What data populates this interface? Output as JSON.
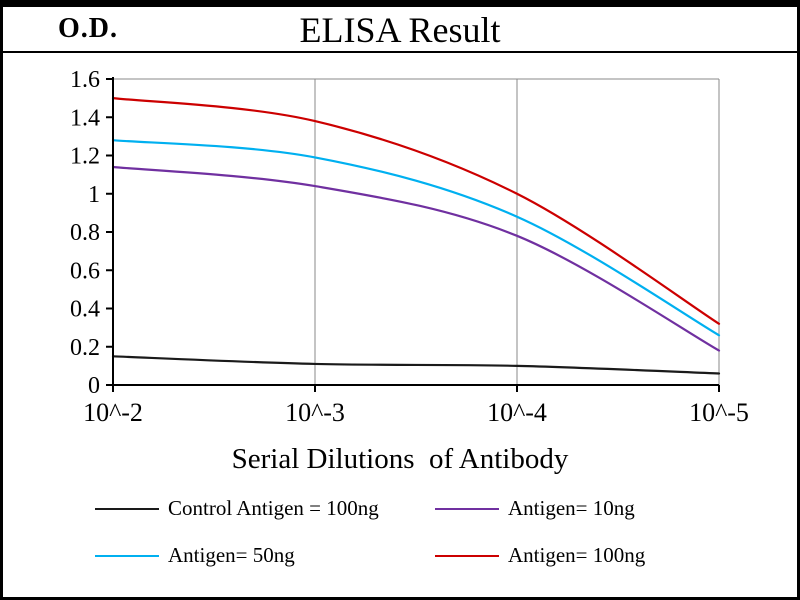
{
  "header": {
    "od_label": "O.D.",
    "title": "ELISA Result"
  },
  "x_axis_title": "Serial Dilutions  of Antibody",
  "chart_data": {
    "type": "line",
    "title": "ELISA Result",
    "xlabel": "Serial Dilutions of Antibody",
    "ylabel": "O.D.",
    "x_labels": [
      "10^-2",
      "10^-3",
      "10^-4",
      "10^-5"
    ],
    "y_tick_values": [
      0,
      0.2,
      0.4,
      0.6,
      0.8,
      1,
      1.2,
      1.4,
      1.6
    ],
    "y_tick_labels": [
      "0",
      "0.2",
      "0.4",
      "0.6",
      "0.8",
      "1",
      "1.2",
      "1.4",
      "1.6"
    ],
    "ylim": [
      0,
      1.6
    ],
    "grid": "vertical-only",
    "legend_position": "bottom",
    "colors": {
      "grid": "#888888",
      "axis": "#000000"
    },
    "series": [
      {
        "name": "Control Antigen = 100ng",
        "color": "#1a1a1a",
        "values": [
          0.15,
          0.11,
          0.1,
          0.06
        ]
      },
      {
        "name": "Antigen= 10ng",
        "color": "#7030a0",
        "values": [
          1.14,
          1.04,
          0.78,
          0.18
        ]
      },
      {
        "name": "Antigen= 50ng",
        "color": "#00b0f0",
        "values": [
          1.28,
          1.19,
          0.88,
          0.26
        ]
      },
      {
        "name": "Antigen= 100ng",
        "color": "#cc0000",
        "values": [
          1.5,
          1.38,
          1.0,
          0.32
        ]
      }
    ]
  }
}
